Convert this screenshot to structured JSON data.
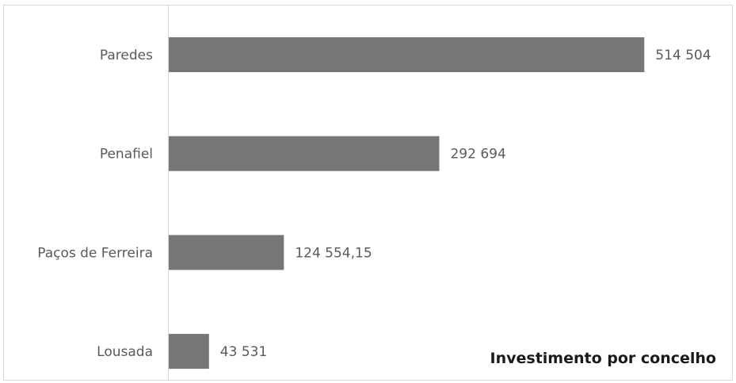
{
  "chart_data": {
    "type": "bar",
    "orientation": "horizontal",
    "title": "Investimento por concelho",
    "categories": [
      "Paredes",
      "Penafiel",
      "Paços de Ferreira",
      "Lousada"
    ],
    "values": [
      514504,
      292694,
      124554.15,
      43531
    ],
    "value_labels": [
      "514 504",
      "292 694",
      "124 554,15",
      "43 531"
    ],
    "xlim": [
      0,
      600000
    ],
    "colors": {
      "bar": "#767676",
      "text": "#5a5a5a",
      "title": "#1a1a1a"
    },
    "grid": false,
    "legend": "none"
  }
}
